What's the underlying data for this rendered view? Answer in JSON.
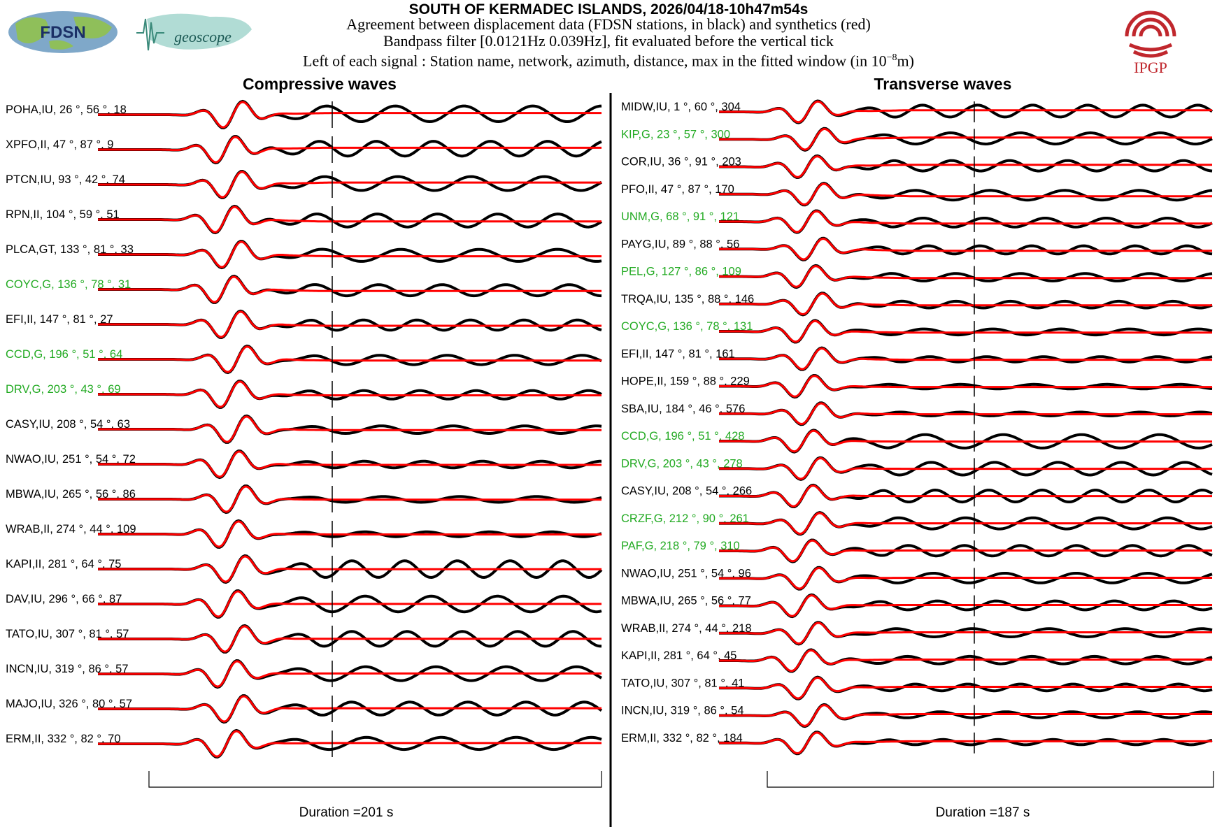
{
  "header": {
    "title": "SOUTH OF KERMADEC ISLANDS, 2026/04/18-10h47m54s",
    "line1": "Agreement between displacement data (FDSN stations, in black) and synthetics (red)",
    "line2": "Bandpass filter [0.0121Hz 0.039Hz], fit evaluated before the vertical tick",
    "line3": "Left of each signal : Station name, network, azimuth, distance, max in the fitted window (in 10",
    "line3_exp": "−8",
    "line3_end": "m)"
  },
  "logos": {
    "fdsn": "FDSN",
    "geoscope": "geoscope",
    "ipgp": "IPGP"
  },
  "colors": {
    "data": "#000000",
    "synthetic": "#ff0000",
    "highlight": "#22aa22",
    "normal": "#000000",
    "ipgp": "#c0272d"
  },
  "chart_data": [
    {
      "type": "line",
      "title": "Compressive waves",
      "duration_label": "Duration =201 s",
      "duration_s": 201,
      "series_legend": {
        "data": "displacement data (black)",
        "synthetic": "synthetics (red)"
      },
      "stations": [
        {
          "label": "POHA,IU, 26 °, 56 °, 18",
          "highlight": false
        },
        {
          "label": "XPFO,II, 47 °, 87 °, 9",
          "highlight": false
        },
        {
          "label": "PTCN,IU, 93 °, 42 °, 74",
          "highlight": false
        },
        {
          "label": "RPN,II, 104 °, 59 °, 51",
          "highlight": false
        },
        {
          "label": "PLCA,GT, 133 °, 81 °, 33",
          "highlight": false
        },
        {
          "label": "COYC,G, 136 °, 78 °, 31",
          "highlight": true
        },
        {
          "label": "EFI,II, 147 °, 81 °, 27",
          "highlight": false
        },
        {
          "label": "CCD,G, 196 °, 51 °, 64",
          "highlight": true
        },
        {
          "label": "DRV,G, 203 °, 43 °, 69",
          "highlight": true
        },
        {
          "label": "CASY,IU, 208 °, 54 °, 63",
          "highlight": false
        },
        {
          "label": "NWAO,IU, 251 °, 54 °, 72",
          "highlight": false
        },
        {
          "label": "MBWA,IU, 265 °, 56 °, 86",
          "highlight": false
        },
        {
          "label": "WRAB,II, 274 °, 44 °, 109",
          "highlight": false
        },
        {
          "label": "KAPI,II, 281 °, 64 °, 75",
          "highlight": false
        },
        {
          "label": "DAV,IU, 296 °, 66 °, 87",
          "highlight": false
        },
        {
          "label": "TATO,IU, 307 °, 81 °, 57",
          "highlight": false
        },
        {
          "label": "INCN,IU, 319 °, 86 °, 57",
          "highlight": false
        },
        {
          "label": "MAJO,IU, 326 °, 80 °, 57",
          "highlight": false
        },
        {
          "label": "ERM,II, 332 °, 82 °, 70",
          "highlight": false
        }
      ]
    },
    {
      "type": "line",
      "title": "Transverse waves",
      "duration_label": "Duration =187 s",
      "duration_s": 187,
      "series_legend": {
        "data": "displacement data (black)",
        "synthetic": "synthetics (red)"
      },
      "stations": [
        {
          "label": "MIDW,IU, 1 °, 60 °, 304",
          "highlight": false
        },
        {
          "label": "KIP,G, 23 °, 57 °, 300",
          "highlight": true
        },
        {
          "label": "COR,IU, 36 °, 91 °, 203",
          "highlight": false
        },
        {
          "label": "PFO,II, 47 °, 87 °, 170",
          "highlight": false
        },
        {
          "label": "UNM,G, 68 °, 91 °, 121",
          "highlight": true
        },
        {
          "label": "PAYG,IU, 89 °, 88 °, 56",
          "highlight": false
        },
        {
          "label": "PEL,G, 127 °, 86 °, 109",
          "highlight": true
        },
        {
          "label": "TRQA,IU, 135 °, 88 °, 146",
          "highlight": false
        },
        {
          "label": "COYC,G, 136 °, 78 °, 131",
          "highlight": true
        },
        {
          "label": "EFI,II, 147 °, 81 °, 161",
          "highlight": false
        },
        {
          "label": "HOPE,II, 159 °, 88 °, 229",
          "highlight": false
        },
        {
          "label": "SBA,IU, 184 °, 46 °, 576",
          "highlight": false
        },
        {
          "label": "CCD,G, 196 °, 51 °, 428",
          "highlight": true
        },
        {
          "label": "DRV,G, 203 °, 43 °, 278",
          "highlight": true
        },
        {
          "label": "CASY,IU, 208 °, 54 °, 266",
          "highlight": false
        },
        {
          "label": "CRZF,G, 212 °, 90 °, 261",
          "highlight": true
        },
        {
          "label": "PAF,G, 218 °, 79 °, 310",
          "highlight": true
        },
        {
          "label": "NWAO,IU, 251 °, 54 °, 96",
          "highlight": false
        },
        {
          "label": "MBWA,IU, 265 °, 56 °, 77",
          "highlight": false
        },
        {
          "label": "WRAB,II, 274 °, 44 °, 218",
          "highlight": false
        },
        {
          "label": "KAPI,II, 281 °, 64 °, 45",
          "highlight": false
        },
        {
          "label": "TATO,IU, 307 °, 81 °, 41",
          "highlight": false
        },
        {
          "label": "INCN,IU, 319 °, 86 °, 54",
          "highlight": false
        },
        {
          "label": "ERM,II, 332 °, 82 °, 184",
          "highlight": false
        }
      ]
    }
  ]
}
